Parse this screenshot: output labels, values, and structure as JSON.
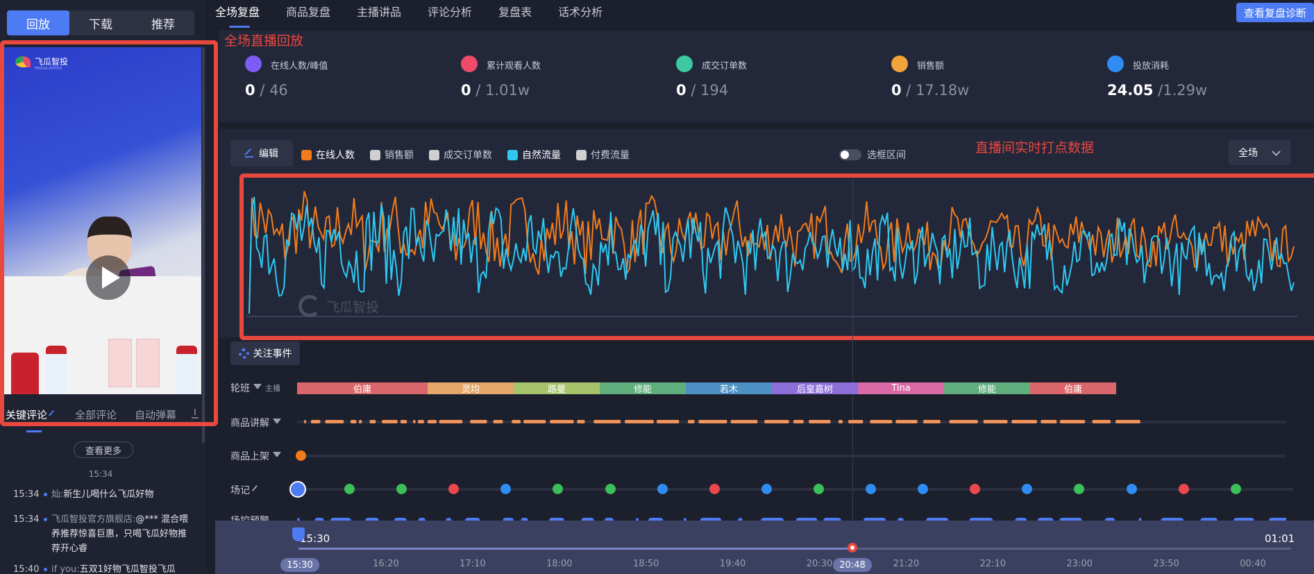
{
  "left_tabs": [
    "回放",
    "下载",
    "推荐"
  ],
  "video": {
    "logo_text": "飞瓜智投",
    "logo_sub": "FEIGUA ZHITOU"
  },
  "comment_tabs": [
    "关键评论",
    "全部评论",
    "自动弹幕"
  ],
  "more_button": "查看更多",
  "center_time": "15:34",
  "comments": [
    {
      "time": "15:34",
      "user": "灿:",
      "text": "新生儿喝什么飞瓜好物"
    },
    {
      "time": "15:34",
      "user": "飞瓜智投官方旗舰店:",
      "text": "@*** 混合喂养推荐惊喜巨惠，只喝飞瓜好物推荐开心睿"
    },
    {
      "time": "15:40",
      "user": "if you:",
      "text": "五双1好物飞瓜智投飞瓜"
    }
  ],
  "nav_tabs": [
    "全场复盘",
    "商品复盘",
    "主播讲品",
    "评论分析",
    "复盘表",
    "话术分析"
  ],
  "diagnose_button": "查看复盘诊断",
  "annotations": {
    "replay": "全场直播回放",
    "realtime": "直播间实时打点数据"
  },
  "metrics": [
    {
      "label": "在线人数/峰值",
      "value": "0",
      "total": "46",
      "color": "#7c5cf2"
    },
    {
      "label": "累计观看人数",
      "value": "0",
      "total": "1.01w",
      "color": "#ef4a6a"
    },
    {
      "label": "成交订单数",
      "value": "0",
      "total": "194",
      "color": "#3cc9a1"
    },
    {
      "label": "销售额",
      "value": "0",
      "total": "17.18w",
      "color": "#f2a33a"
    },
    {
      "label": "投放消耗",
      "value": "24.05",
      "total": "1.29w",
      "color": "#2f8cf2"
    }
  ],
  "edit_button": "编辑",
  "legend": [
    {
      "label": "在线人数",
      "color": "#f27c1c",
      "on": true
    },
    {
      "label": "销售额",
      "color": "#d0d0d0",
      "on": false
    },
    {
      "label": "成交订单数",
      "color": "#d0d0d0",
      "on": false
    },
    {
      "label": "自然流量",
      "color": "#2ec9f2",
      "on": true
    },
    {
      "label": "付费流量",
      "color": "#d0d0d0",
      "on": false
    }
  ],
  "toggle_label": "选框区间",
  "range_select": "全场",
  "watermark": "飞瓜智投",
  "events_button": "关注事件",
  "rows": {
    "shift": "轮班",
    "shift_sub": "主播",
    "explain": "商品讲解",
    "listing": "商品上架",
    "record": "场记",
    "flow": "场控预警"
  },
  "shifts": [
    {
      "name": "伯庸",
      "color": "#d9666a"
    },
    {
      "name": "灵均",
      "color": "#e5a76a"
    },
    {
      "name": "路曼",
      "color": "#a7c46a"
    },
    {
      "name": "修能",
      "color": "#5fae7c"
    },
    {
      "name": "若木",
      "color": "#4d90c4"
    },
    {
      "name": "后皇嘉树",
      "color": "#8c6fd9"
    },
    {
      "name": "Tina",
      "color": "#d96aa8"
    },
    {
      "name": "修能",
      "color": "#5fae7c"
    },
    {
      "name": "伯庸",
      "color": "#d9666a"
    }
  ],
  "record_dot_colors": [
    "#3bbf5a",
    "#3bbf5a",
    "#e9484f",
    "#2f8cf2",
    "#3bbf5a",
    "#3bbf5a",
    "#2f8cf2",
    "#e9484f",
    "#2f8cf2",
    "#3bbf5a",
    "#2f8cf2",
    "#2f8cf2",
    "#e9484f",
    "#2f8cf2",
    "#3bbf5a",
    "#2f8cf2",
    "#e9484f",
    "#3bbf5a"
  ],
  "timeline": {
    "start": "15:30",
    "end": "01:01",
    "ticks": [
      "16:20",
      "17:10",
      "18:00",
      "18:50",
      "19:40",
      "20:30",
      "21:20",
      "22:10",
      "23:00",
      "23:50",
      "00:40"
    ],
    "start_pill": "15:30",
    "current_pill": "20:48"
  },
  "chart_data": {
    "type": "line",
    "series": [
      {
        "name": "在线人数",
        "color": "#f27c1c"
      },
      {
        "name": "自然流量",
        "color": "#2ec9f2"
      }
    ],
    "grid": true
  }
}
